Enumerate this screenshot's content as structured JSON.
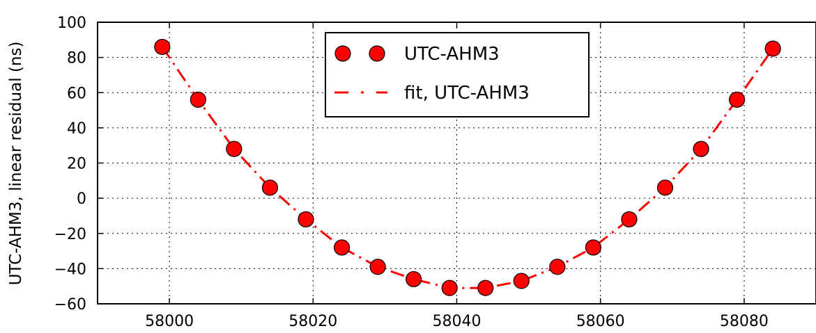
{
  "chart_data": {
    "type": "scatter",
    "ylabel": "UTC-AHM3, linear residual (ns)",
    "xlim": [
      57990,
      58090
    ],
    "ylim": [
      -60,
      100
    ],
    "x_ticks": [
      {
        "value": 58000,
        "label": "58000"
      },
      {
        "value": 58020,
        "label": "58020"
      },
      {
        "value": 58040,
        "label": "58040"
      },
      {
        "value": 58060,
        "label": "58060"
      },
      {
        "value": 58080,
        "label": "58080"
      }
    ],
    "y_ticks": [
      {
        "value": 100,
        "label": "100"
      },
      {
        "value": 80,
        "label": "80"
      },
      {
        "value": 60,
        "label": "60"
      },
      {
        "value": 40,
        "label": "40"
      },
      {
        "value": 20,
        "label": "20"
      },
      {
        "value": 0,
        "label": "0"
      },
      {
        "value": -20,
        "label": "−20"
      },
      {
        "value": -40,
        "label": "−40"
      },
      {
        "value": -60,
        "label": "−60"
      }
    ],
    "grid": true,
    "legend_position": "top-center",
    "series": [
      {
        "name": "UTC-AHM3",
        "kind": "markers",
        "color": "#ff0000",
        "x": [
          57999,
          58004,
          58009,
          58014,
          58019,
          58024,
          58029,
          58034,
          58039,
          58044,
          58049,
          58054,
          58059,
          58064,
          58069,
          58074,
          58079,
          58084
        ],
        "y": [
          86,
          56,
          28,
          6,
          -12,
          -28,
          -39,
          -46,
          -51,
          -51,
          -47,
          -39,
          -28,
          -12,
          6,
          28,
          56,
          85
        ]
      },
      {
        "name": "fit, UTC-AHM3",
        "kind": "dashed-line",
        "color": "#ff0000",
        "x": [
          57999,
          58004,
          58009,
          58014,
          58019,
          58024,
          58029,
          58034,
          58039,
          58044,
          58049,
          58054,
          58059,
          58064,
          58069,
          58074,
          58079,
          58084
        ],
        "y": [
          86,
          56,
          28,
          6,
          -12,
          -28,
          -39,
          -46,
          -51,
          -51,
          -47,
          -39,
          -28,
          -12,
          6,
          28,
          56,
          85
        ]
      }
    ]
  }
}
